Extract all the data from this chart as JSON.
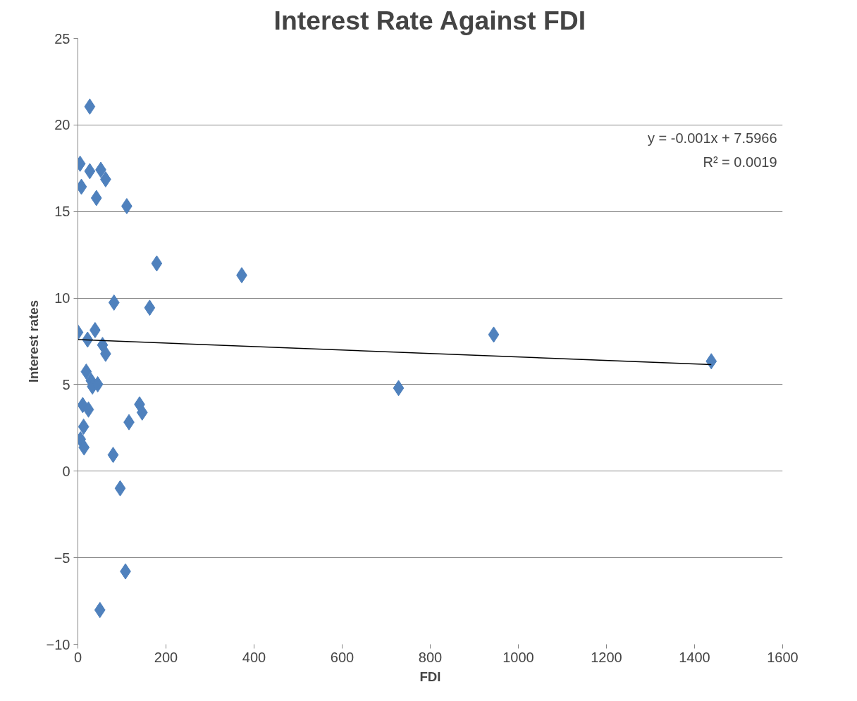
{
  "chart_data": {
    "type": "scatter",
    "title": "Interest Rate Against FDI",
    "xlabel": "FDI",
    "ylabel": "Interest rates",
    "xlim": [
      0,
      1600
    ],
    "xticks": [
      0,
      200,
      400,
      600,
      800,
      1000,
      1200,
      1400,
      1600
    ],
    "ylim": [
      -10,
      25
    ],
    "yticks": [
      -10,
      -5,
      0,
      5,
      10,
      15,
      20,
      25
    ],
    "grid": "y",
    "marker": "diamond",
    "annotations": [
      "y = -0.001x + 7.5966",
      "R² = 0.0019"
    ],
    "series": [
      {
        "color": "#4f81bd",
        "x": [
          27,
          5,
          27,
          52,
          63,
          8,
          42,
          111,
          179,
          372,
          82,
          163,
          0,
          39,
          22,
          56,
          63,
          944,
          1438,
          19,
          30,
          33,
          45,
          728,
          11,
          24,
          140,
          146,
          13,
          116,
          6,
          14,
          80,
          96,
          108,
          50
        ],
        "values": [
          21.06,
          17.76,
          17.33,
          17.41,
          16.86,
          16.43,
          15.78,
          15.31,
          12.0,
          11.32,
          9.74,
          9.44,
          8.02,
          8.15,
          7.6,
          7.29,
          6.78,
          7.89,
          6.35,
          5.75,
          5.23,
          4.89,
          5.02,
          4.8,
          3.82,
          3.56,
          3.86,
          3.39,
          2.57,
          2.83,
          1.84,
          1.37,
          0.94,
          -0.99,
          -5.79,
          -8.02
        ]
      },
      {
        "type": "line",
        "color": "#000000",
        "marker": "none",
        "x": [
          0,
          1438
        ],
        "values": [
          7.6,
          6.16
        ]
      }
    ]
  }
}
